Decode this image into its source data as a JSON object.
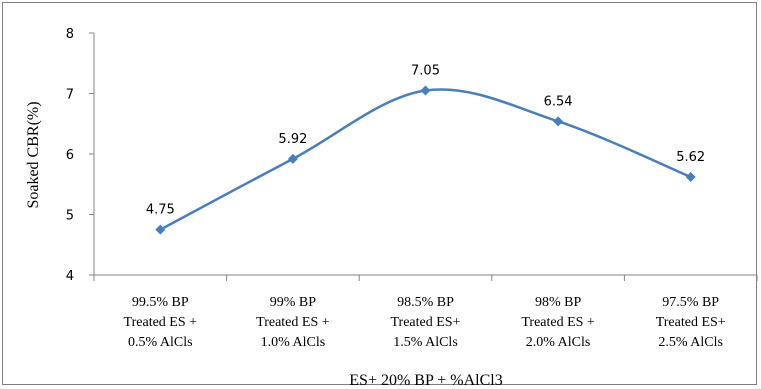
{
  "chart_data": {
    "type": "line",
    "title": "",
    "xlabel": "ES+ 20% BP + %AlCl3",
    "ylabel": "Soaked CBR(%)",
    "ylim": [
      4,
      8
    ],
    "yticks": [
      "4",
      "5",
      "6",
      "7",
      "8"
    ],
    "categories": [
      [
        "99.5% BP",
        "Treated ES +",
        "0.5% AlCls"
      ],
      [
        "99% BP",
        "Treated ES +",
        "1.0%  AlCls"
      ],
      [
        "98.5% BP",
        "Treated ES+",
        "1.5%  AlCls"
      ],
      [
        "98% BP",
        "Treated ES +",
        "2.0%  AlCls"
      ],
      [
        "97.5% BP",
        "Treated ES+",
        "2.5%  AlCls"
      ]
    ],
    "values": [
      4.75,
      5.92,
      7.05,
      6.54,
      5.62
    ],
    "data_labels": [
      "4.75",
      "5.92",
      "7.05",
      "6.54",
      "5.62"
    ],
    "line_color": "#4a7ebb",
    "marker": "diamond",
    "smooth": true,
    "grid": false,
    "legend": "none"
  }
}
